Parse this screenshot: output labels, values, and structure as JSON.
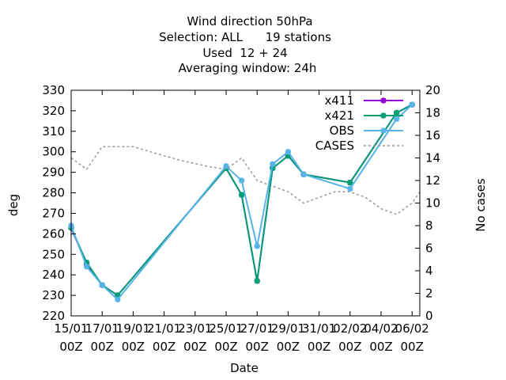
{
  "chart_data": {
    "type": "line",
    "title_lines": [
      "Wind direction 50hPa",
      "Selection: ALL      19 stations",
      "Used  12 + 24",
      "Averaging window: 24h"
    ],
    "xlabel": "Date",
    "ylabel": "deg",
    "y2label": "No cases",
    "xlim": [
      0,
      22.5
    ],
    "ylim": [
      220,
      330
    ],
    "y2lim": [
      0,
      20
    ],
    "x_ticks": [
      {
        "x": 0,
        "line1": "15/01",
        "line2": "00Z"
      },
      {
        "x": 2,
        "line1": "17/01",
        "line2": "00Z"
      },
      {
        "x": 4,
        "line1": "19/01",
        "line2": "00Z"
      },
      {
        "x": 6,
        "line1": "21/01",
        "line2": "00Z"
      },
      {
        "x": 8,
        "line1": "23/01",
        "line2": "00Z"
      },
      {
        "x": 10,
        "line1": "25/01",
        "line2": "00Z"
      },
      {
        "x": 12,
        "line1": "27/01",
        "line2": "00Z"
      },
      {
        "x": 14,
        "line1": "29/01",
        "line2": "00Z"
      },
      {
        "x": 16,
        "line1": "31/01",
        "line2": "00Z"
      },
      {
        "x": 18,
        "line1": "02/02",
        "line2": "00Z"
      },
      {
        "x": 20,
        "line1": "04/02",
        "line2": "00Z"
      },
      {
        "x": 22,
        "line1": "06/02",
        "line2": "00Z"
      }
    ],
    "y_ticks": [
      220,
      230,
      240,
      250,
      260,
      270,
      280,
      290,
      300,
      310,
      320,
      330
    ],
    "y2_ticks": [
      0,
      2,
      4,
      6,
      8,
      10,
      12,
      14,
      16,
      18,
      20
    ],
    "legend_position": "top-right",
    "series": [
      {
        "name": "x411",
        "color": "#9400d3",
        "axis": "y1",
        "style": "line-points",
        "x": [
          0,
          1,
          2,
          3,
          10,
          11,
          12,
          13,
          14,
          15,
          18,
          21,
          22
        ],
        "y": [
          263,
          245,
          235,
          230,
          292,
          279,
          237,
          292,
          298,
          289,
          285,
          319,
          323
        ]
      },
      {
        "name": "x421",
        "color": "#009e73",
        "axis": "y1",
        "style": "line-points",
        "x": [
          0,
          1,
          2,
          3,
          10,
          11,
          12,
          13,
          14,
          15,
          18,
          21,
          22
        ],
        "y": [
          263,
          246,
          235,
          230,
          292,
          279,
          237,
          292,
          298,
          289,
          285,
          319,
          323
        ]
      },
      {
        "name": "OBS",
        "color": "#56b4e9",
        "axis": "y1",
        "style": "line-points",
        "x": [
          0,
          1,
          2,
          3,
          10,
          11,
          12,
          13,
          14,
          15,
          18,
          21,
          22
        ],
        "y": [
          264,
          244,
          235,
          228,
          293,
          286,
          254,
          294,
          300,
          289,
          282,
          316,
          323
        ]
      },
      {
        "name": "CASES",
        "color": "#999999",
        "axis": "y2",
        "style": "dashed",
        "x": [
          0,
          1,
          2,
          3,
          4,
          5,
          6,
          7,
          8,
          9,
          10,
          11,
          12,
          13,
          14,
          15,
          16,
          17,
          18,
          19,
          20,
          21,
          22,
          22.5
        ],
        "y": [
          14,
          13,
          15,
          15,
          15,
          14.6,
          14.2,
          13.8,
          13.5,
          13.2,
          13,
          14,
          12,
          11.5,
          11,
          10,
          10.5,
          11,
          11,
          10.5,
          9.5,
          9,
          10,
          11
        ]
      }
    ]
  }
}
